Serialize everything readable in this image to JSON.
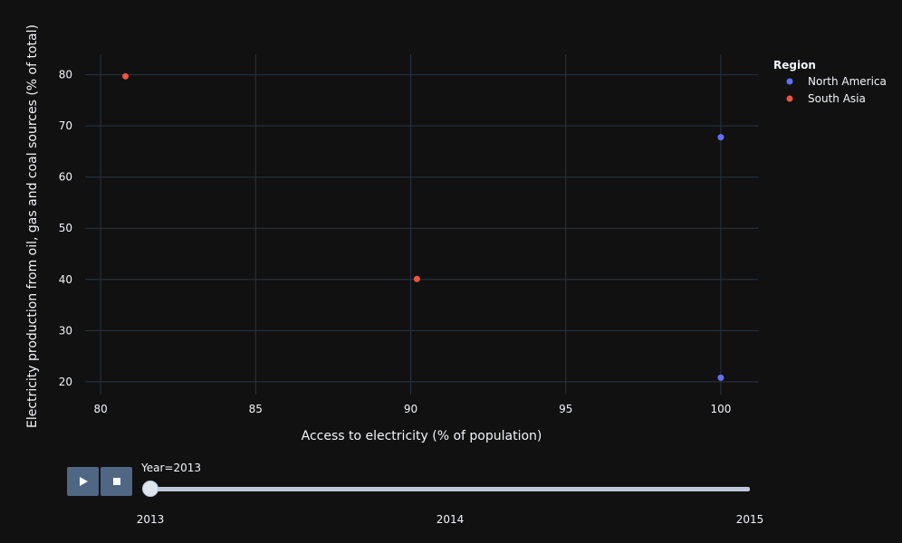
{
  "chart_data": {
    "type": "scatter",
    "xlabel": "Access to electricity (% of population)",
    "ylabel": "Electricity production from oil, gas and coal sources (% of total)",
    "xlim": [
      79.5,
      101.2
    ],
    "ylim": [
      17.5,
      84
    ],
    "x_ticks": [
      80,
      85,
      90,
      95,
      100
    ],
    "y_ticks": [
      20,
      30,
      40,
      50,
      60,
      70,
      80
    ],
    "grid": true,
    "legend": {
      "title": "Region",
      "placement": "top-right"
    },
    "series": [
      {
        "name": "North America",
        "color": "#636efa",
        "points": [
          {
            "x": 100,
            "y": 67.8
          },
          {
            "x": 100,
            "y": 20.8
          }
        ]
      },
      {
        "name": "South Asia",
        "color": "#ef553b",
        "points": [
          {
            "x": 80.8,
            "y": 79.7
          },
          {
            "x": 90.2,
            "y": 40.1
          }
        ]
      }
    ]
  },
  "animation": {
    "play_icon": "play-icon",
    "stop_icon": "stop-icon",
    "current_label": "Year=2013",
    "steps": [
      "2013",
      "2014",
      "2015"
    ],
    "current_step": 0
  },
  "theme": {
    "background": "#111111",
    "grid": "#283442",
    "button": "#506784"
  }
}
